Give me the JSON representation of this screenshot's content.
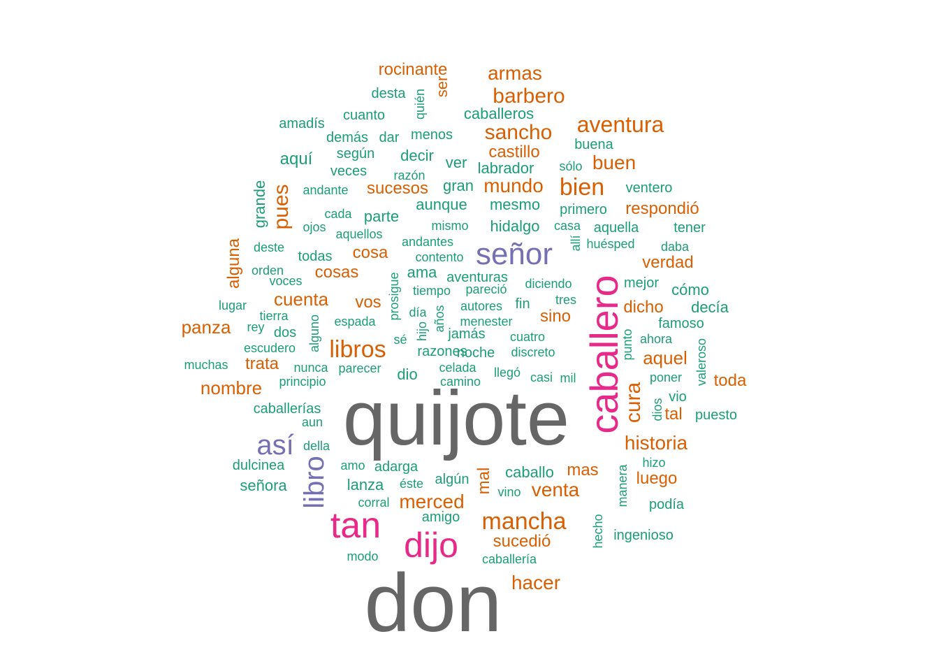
{
  "wordcloud": {
    "colors": [
      "#666666",
      "#e7298a",
      "#7570b3",
      "#d95f02",
      "#1b9e77"
    ],
    "words": [
      {
        "t": "don",
        "c": 0
      },
      {
        "t": "quijote",
        "c": 0
      },
      {
        "t": "caballero",
        "c": 1
      },
      {
        "t": "dijo",
        "c": 1
      },
      {
        "t": "tan",
        "c": 1
      },
      {
        "t": "señor",
        "c": 2
      },
      {
        "t": "así",
        "c": 2
      },
      {
        "t": "libro",
        "c": 2
      },
      {
        "t": "rocinante",
        "c": 3
      },
      {
        "t": "armas",
        "c": 3
      },
      {
        "t": "barbero",
        "c": 3
      },
      {
        "t": "ser",
        "c": 3
      },
      {
        "t": "sancho",
        "c": 3
      },
      {
        "t": "aventura",
        "c": 3
      },
      {
        "t": "castillo",
        "c": 3
      },
      {
        "t": "buen",
        "c": 3
      },
      {
        "t": "bien",
        "c": 3
      },
      {
        "t": "mundo",
        "c": 3
      },
      {
        "t": "sucesos",
        "c": 3
      },
      {
        "t": "pues",
        "c": 3
      },
      {
        "t": "respondió",
        "c": 3
      },
      {
        "t": "alguna",
        "c": 3
      },
      {
        "t": "cosa",
        "c": 3
      },
      {
        "t": "cosas",
        "c": 3
      },
      {
        "t": "verdad",
        "c": 3
      },
      {
        "t": "cuenta",
        "c": 3
      },
      {
        "t": "vos",
        "c": 3
      },
      {
        "t": "dicho",
        "c": 3
      },
      {
        "t": "panza",
        "c": 3
      },
      {
        "t": "sino",
        "c": 3
      },
      {
        "t": "libros",
        "c": 3
      },
      {
        "t": "aquel",
        "c": 3
      },
      {
        "t": "trata",
        "c": 3
      },
      {
        "t": "nombre",
        "c": 3
      },
      {
        "t": "cura",
        "c": 3
      },
      {
        "t": "toda",
        "c": 3
      },
      {
        "t": "tal",
        "c": 3
      },
      {
        "t": "historia",
        "c": 3
      },
      {
        "t": "mas",
        "c": 3
      },
      {
        "t": "mal",
        "c": 3
      },
      {
        "t": "luego",
        "c": 3
      },
      {
        "t": "venta",
        "c": 3
      },
      {
        "t": "merced",
        "c": 3
      },
      {
        "t": "mancha",
        "c": 3
      },
      {
        "t": "sucedió",
        "c": 3
      },
      {
        "t": "hacer",
        "c": 3
      },
      {
        "t": "desta",
        "c": 4
      },
      {
        "t": "quién",
        "c": 4
      },
      {
        "t": "cuanto",
        "c": 4
      },
      {
        "t": "caballeros",
        "c": 4
      },
      {
        "t": "amadís",
        "c": 4
      },
      {
        "t": "demás",
        "c": 4
      },
      {
        "t": "dar",
        "c": 4
      },
      {
        "t": "menos",
        "c": 4
      },
      {
        "t": "buena",
        "c": 4
      },
      {
        "t": "según",
        "c": 4
      },
      {
        "t": "decir",
        "c": 4
      },
      {
        "t": "aquí",
        "c": 4
      },
      {
        "t": "ver",
        "c": 4
      },
      {
        "t": "labrador",
        "c": 4
      },
      {
        "t": "sólo",
        "c": 4
      },
      {
        "t": "veces",
        "c": 4
      },
      {
        "t": "razón",
        "c": 4
      },
      {
        "t": "grande",
        "c": 4
      },
      {
        "t": "andante",
        "c": 4
      },
      {
        "t": "gran",
        "c": 4
      },
      {
        "t": "ventero",
        "c": 4
      },
      {
        "t": "aunque",
        "c": 4
      },
      {
        "t": "mesmo",
        "c": 4
      },
      {
        "t": "cada",
        "c": 4
      },
      {
        "t": "parte",
        "c": 4
      },
      {
        "t": "primero",
        "c": 4
      },
      {
        "t": "ojos",
        "c": 4
      },
      {
        "t": "mismo",
        "c": 4
      },
      {
        "t": "hidalgo",
        "c": 4
      },
      {
        "t": "casa",
        "c": 4
      },
      {
        "t": "aquella",
        "c": 4
      },
      {
        "t": "tener",
        "c": 4
      },
      {
        "t": "aquellos",
        "c": 4
      },
      {
        "t": "allí",
        "c": 4
      },
      {
        "t": "deste",
        "c": 4
      },
      {
        "t": "andantes",
        "c": 4
      },
      {
        "t": "huésped",
        "c": 4
      },
      {
        "t": "daba",
        "c": 4
      },
      {
        "t": "todas",
        "c": 4
      },
      {
        "t": "contento",
        "c": 4
      },
      {
        "t": "orden",
        "c": 4
      },
      {
        "t": "ama",
        "c": 4
      },
      {
        "t": "aventuras",
        "c": 4
      },
      {
        "t": "voces",
        "c": 4
      },
      {
        "t": "prosigue",
        "c": 4
      },
      {
        "t": "diciendo",
        "c": 4
      },
      {
        "t": "mejor",
        "c": 4
      },
      {
        "t": "tiempo",
        "c": 4
      },
      {
        "t": "pareció",
        "c": 4
      },
      {
        "t": "cómo",
        "c": 4
      },
      {
        "t": "tres",
        "c": 4
      },
      {
        "t": "lugar",
        "c": 4
      },
      {
        "t": "autores",
        "c": 4
      },
      {
        "t": "fin",
        "c": 4
      },
      {
        "t": "decía",
        "c": 4
      },
      {
        "t": "día",
        "c": 4
      },
      {
        "t": "años",
        "c": 4
      },
      {
        "t": "tierra",
        "c": 4
      },
      {
        "t": "menester",
        "c": 4
      },
      {
        "t": "espada",
        "c": 4
      },
      {
        "t": "rey",
        "c": 4
      },
      {
        "t": "famoso",
        "c": 4
      },
      {
        "t": "dos",
        "c": 4
      },
      {
        "t": "hijo",
        "c": 4
      },
      {
        "t": "alguno",
        "c": 4
      },
      {
        "t": "jamás",
        "c": 4
      },
      {
        "t": "cuatro",
        "c": 4
      },
      {
        "t": "ahora",
        "c": 4
      },
      {
        "t": "punto",
        "c": 4
      },
      {
        "t": "sé",
        "c": 4
      },
      {
        "t": "escudero",
        "c": 4
      },
      {
        "t": "razones",
        "c": 4
      },
      {
        "t": "noche",
        "c": 4
      },
      {
        "t": "discreto",
        "c": 4
      },
      {
        "t": "valeroso",
        "c": 4
      },
      {
        "t": "muchas",
        "c": 4
      },
      {
        "t": "nunca",
        "c": 4
      },
      {
        "t": "parecer",
        "c": 4
      },
      {
        "t": "celada",
        "c": 4
      },
      {
        "t": "dio",
        "c": 4
      },
      {
        "t": "llegó",
        "c": 4
      },
      {
        "t": "casi",
        "c": 4
      },
      {
        "t": "mil",
        "c": 4
      },
      {
        "t": "poner",
        "c": 4
      },
      {
        "t": "principio",
        "c": 4
      },
      {
        "t": "camino",
        "c": 4
      },
      {
        "t": "vio",
        "c": 4
      },
      {
        "t": "caballerías",
        "c": 4
      },
      {
        "t": "dios",
        "c": 4
      },
      {
        "t": "puesto",
        "c": 4
      },
      {
        "t": "aun",
        "c": 4
      },
      {
        "t": "della",
        "c": 4
      },
      {
        "t": "dulcinea",
        "c": 4
      },
      {
        "t": "amo",
        "c": 4
      },
      {
        "t": "adarga",
        "c": 4
      },
      {
        "t": "manera",
        "c": 4
      },
      {
        "t": "hizo",
        "c": 4
      },
      {
        "t": "caballo",
        "c": 4
      },
      {
        "t": "señora",
        "c": 4
      },
      {
        "t": "lanza",
        "c": 4
      },
      {
        "t": "éste",
        "c": 4
      },
      {
        "t": "algún",
        "c": 4
      },
      {
        "t": "vino",
        "c": 4
      },
      {
        "t": "corral",
        "c": 4
      },
      {
        "t": "podía",
        "c": 4
      },
      {
        "t": "amigo",
        "c": 4
      },
      {
        "t": "hecho",
        "c": 4
      },
      {
        "t": "ingenioso",
        "c": 4
      },
      {
        "t": "modo",
        "c": 4
      },
      {
        "t": "caballería",
        "c": 4
      }
    ]
  }
}
